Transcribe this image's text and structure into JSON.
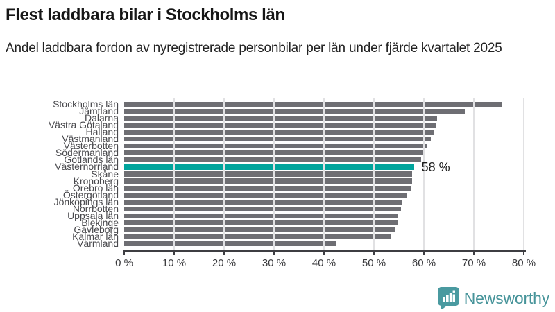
{
  "header": {
    "title": "Flest laddbara bilar i Stockholms län",
    "subtitle": "Andel laddbara fordon av nyregistrerade personbilar per län under fjärde kvartalet 2025"
  },
  "chart_data": {
    "type": "bar",
    "orientation": "horizontal",
    "title": "Flest laddbara bilar i Stockholms län",
    "xlabel": "",
    "ylabel": "",
    "xlim": [
      0,
      80
    ],
    "grid": "vertical",
    "legend": "none",
    "categories": [
      "Stockholms län",
      "Jämtland",
      "Dalarna",
      "Västra Götaland",
      "Halland",
      "Västmanland",
      "Västerbotten",
      "Södermanland",
      "Gotlands län",
      "Västernorrland",
      "Skåne",
      "Kronoberg",
      "Örebro län",
      "Östergötland",
      "Jönköpings län",
      "Norrbotten",
      "Uppsala län",
      "Blekinge",
      "Gävleborg",
      "Kalmar län",
      "Värmland"
    ],
    "values": [
      75.7,
      68.2,
      62.7,
      62.4,
      62.1,
      61.4,
      60.7,
      59.8,
      59.4,
      58,
      57.7,
      57.6,
      57.5,
      56.6,
      55.5,
      55.4,
      54.9,
      54.8,
      54.3,
      53.5,
      42.4
    ],
    "highlight_index": 9,
    "highlight_category": "Västernorrland",
    "highlight_value_label": "58 %",
    "x_ticks": [
      0,
      10,
      20,
      30,
      40,
      50,
      60,
      70,
      80
    ],
    "x_tick_labels": [
      "0 %",
      "10 %",
      "20 %",
      "30 %",
      "40 %",
      "50 %",
      "60 %",
      "70 %",
      "80 %"
    ],
    "bar_color": "#6e6e73",
    "highlight_color": "#00a49c",
    "gridline_color": "#e1e1e3"
  },
  "footer": {
    "logo_text": "Newsworthy",
    "logo_color": "#47949a",
    "logo_icon": "bar-chart-speech-bubble"
  }
}
